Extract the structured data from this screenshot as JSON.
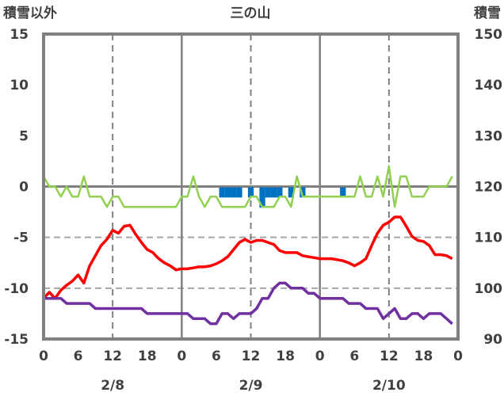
{
  "chart_data": {
    "type": "line",
    "title": "三の山",
    "ylabel_left": "積雪以外",
    "ylabel_right": "積雪",
    "ylim_left": [
      -15,
      15
    ],
    "ylim_right": [
      90,
      150
    ],
    "yticks_left": [
      "15",
      "10",
      "5",
      "0",
      "-5",
      "-10",
      "-15"
    ],
    "yticks_right": [
      "150",
      "140",
      "130",
      "120",
      "110",
      "100",
      "90"
    ],
    "xlim_hours": [
      0,
      72
    ],
    "xtick_labels": [
      "0",
      "6",
      "12",
      "18",
      "0",
      "6",
      "12",
      "18",
      "0",
      "6",
      "12",
      "18",
      "0"
    ],
    "date_labels": [
      "2/8",
      "2/9",
      "2/10"
    ],
    "grid": "dashed horizontal at -5 and -10; dashed vertical at 12h; solid vertical at day boundaries",
    "colors": {
      "red": "#ff0000",
      "purple": "#7030a0",
      "green": "#92d050",
      "snow": "#0070c0",
      "frame": "#808080"
    },
    "series": [
      {
        "name": "red",
        "axis": "left",
        "color": "#ff0000",
        "values": [
          -11,
          -10.4,
          -11,
          -10.2,
          -9.7,
          -9.3,
          -8.7,
          -9.5,
          -7.8,
          -6.8,
          -5.8,
          -5.2,
          -4.3,
          -4.6,
          -3.9,
          -3.8,
          -4.7,
          -5.5,
          -6.2,
          -6.5,
          -7.1,
          -7.5,
          -7.8,
          -8.2,
          -8.1,
          -8.1,
          -8.0,
          -7.9,
          -7.9,
          -7.8,
          -7.6,
          -7.3,
          -6.9,
          -6.2,
          -5.5,
          -5.2,
          -5.5,
          -5.3,
          -5.3,
          -5.5,
          -5.7,
          -6.3,
          -6.5,
          -6.5,
          -6.5,
          -6.8,
          -6.9,
          -7.0,
          -7.1,
          -7.1,
          -7.1,
          -7.2,
          -7.3,
          -7.5,
          -7.8,
          -7.5,
          -7.1,
          -5.8,
          -4.6,
          -3.8,
          -3.5,
          -3.0,
          -3.0,
          -3.9,
          -4.9,
          -5.3,
          -5.4,
          -5.8,
          -6.7,
          -6.7,
          -6.8,
          -7.1
        ]
      },
      {
        "name": "purple",
        "axis": "left",
        "color": "#7030a0",
        "values": [
          -11,
          -11,
          -11,
          -11,
          -11.5,
          -11.5,
          -11.5,
          -11.5,
          -11.5,
          -12,
          -12,
          -12,
          -12,
          -12,
          -12,
          -12,
          -12,
          -12,
          -12.5,
          -12.5,
          -12.5,
          -12.5,
          -12.5,
          -12.5,
          -12.5,
          -12.5,
          -13,
          -13,
          -13,
          -13.5,
          -13.5,
          -12.5,
          -12.5,
          -13,
          -12.5,
          -12.5,
          -12.5,
          -12,
          -11,
          -11,
          -10,
          -9.5,
          -9.5,
          -10,
          -10,
          -10,
          -10.5,
          -10.5,
          -11,
          -11,
          -11,
          -11,
          -11,
          -11.5,
          -11.5,
          -11.5,
          -12,
          -12,
          -12,
          -13,
          -12.5,
          -12,
          -13,
          -13,
          -12.5,
          -12.5,
          -13,
          -12.5,
          -12.5,
          -12.5,
          -13,
          -13.5
        ]
      },
      {
        "name": "green",
        "axis": "left",
        "color": "#92d050",
        "values": [
          1,
          0,
          0,
          -1,
          0,
          -1,
          -1,
          1,
          -1,
          -1,
          -1,
          -2,
          -1,
          -1,
          -2,
          -2,
          -2,
          -2,
          -2,
          -2,
          -2,
          -2,
          -2,
          -2,
          -1,
          -1,
          1,
          -1,
          -2,
          -1,
          -1,
          -2,
          -2,
          -2,
          -2,
          -2,
          -1,
          -1,
          -2,
          -2,
          -2,
          -1,
          -1,
          -2,
          1,
          -1,
          -1,
          -1,
          -1,
          -1,
          -1,
          -1,
          -1,
          -1,
          -1,
          1,
          -1,
          -1,
          1,
          -1,
          2,
          -2,
          1,
          1,
          -1,
          -1,
          -1,
          0,
          0,
          0,
          0,
          1
        ]
      },
      {
        "name": "snow",
        "axis": "right",
        "type": "bar",
        "color": "#0070c0",
        "baseline": 120,
        "points": [
          {
            "h": 31,
            "v": 118
          },
          {
            "h": 32,
            "v": 118
          },
          {
            "h": 33,
            "v": 118
          },
          {
            "h": 34,
            "v": 118
          },
          {
            "h": 36,
            "v": 118
          },
          {
            "h": 38,
            "v": 116
          },
          {
            "h": 39,
            "v": 118
          },
          {
            "h": 40,
            "v": 118
          },
          {
            "h": 41,
            "v": 118
          },
          {
            "h": 43,
            "v": 118
          },
          {
            "h": 45,
            "v": 118
          },
          {
            "h": 52,
            "v": 118
          }
        ]
      }
    ]
  }
}
